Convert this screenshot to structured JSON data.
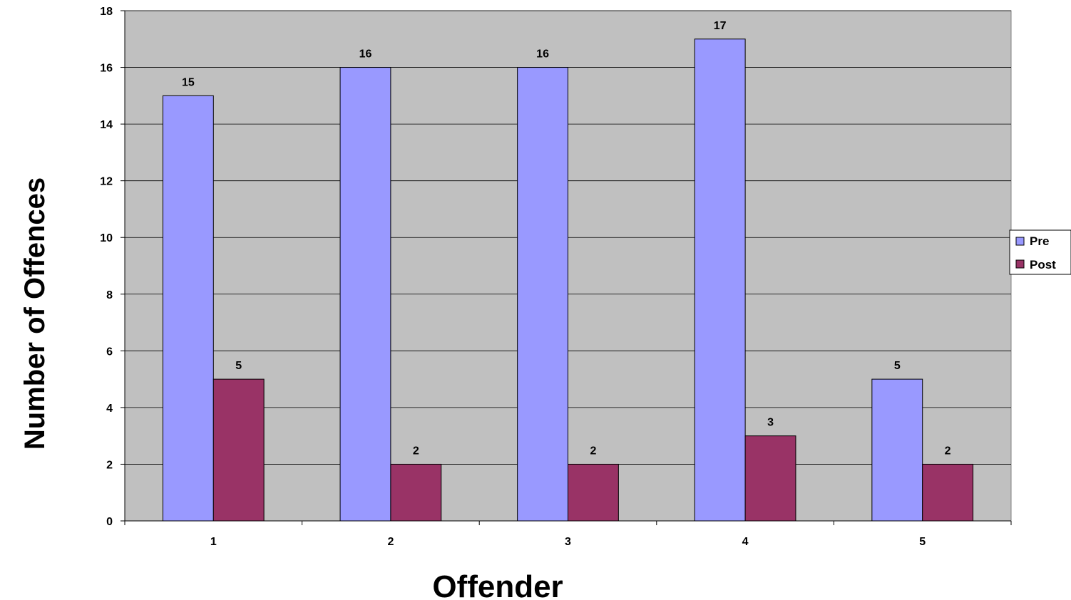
{
  "chart_data": {
    "type": "bar",
    "title": "",
    "xlabel": "Offender",
    "ylabel": "Number of Offences",
    "categories": [
      "1",
      "2",
      "3",
      "4",
      "5"
    ],
    "series": [
      {
        "name": "Pre",
        "values": [
          15,
          16,
          16,
          17,
          5
        ],
        "color": "#9999ff"
      },
      {
        "name": "Post",
        "values": [
          5,
          2,
          2,
          3,
          2
        ],
        "color": "#993366"
      }
    ],
    "ylim": [
      0,
      18
    ],
    "yticks": [
      0,
      2,
      4,
      6,
      8,
      10,
      12,
      14,
      16,
      18
    ],
    "grid": true,
    "legend_position": "right",
    "data_labels": true,
    "plot_background": "#c0c0c0"
  }
}
